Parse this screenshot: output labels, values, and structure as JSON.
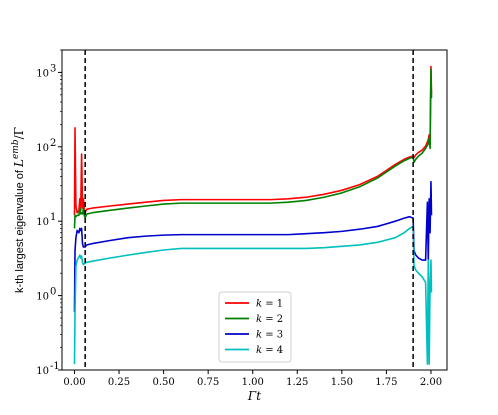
{
  "chart_data": {
    "type": "line",
    "title": "",
    "xlabel": "Γt",
    "ylabel": "k-th largest eigenvalue of L^emb/Γ",
    "ylabel_parts": {
      "prefix": "k-th largest eigenvalue of ",
      "var": "L",
      "sup": "emb",
      "suffix": "/Γ"
    },
    "xlim": [
      -0.07,
      2.09
    ],
    "ylim": [
      0.1,
      2000
    ],
    "yscale": "log",
    "grid": false,
    "legend_position": "lower-center",
    "xticks": [
      0.0,
      0.25,
      0.5,
      0.75,
      1.0,
      1.25,
      1.5,
      1.75,
      2.0
    ],
    "xtick_labels": [
      "0.00",
      "0.25",
      "0.50",
      "0.75",
      "1.00",
      "1.25",
      "1.50",
      "1.75",
      "2.00"
    ],
    "yticks": [
      0.1,
      1,
      10,
      100,
      1000
    ],
    "ytick_labels": [
      "10",
      "10",
      "10",
      "10",
      "10"
    ],
    "ytick_exponents": [
      "-1",
      "0",
      "1",
      "2",
      "3"
    ],
    "vlines": [
      0.06,
      1.9
    ],
    "series": [
      {
        "name": "k = 1",
        "legend_prefix": "k",
        "legend_value": "= 1",
        "color": "#ff0000",
        "x": [
          0.0,
          0.003,
          0.008,
          0.015,
          0.025,
          0.03,
          0.035,
          0.04,
          0.045,
          0.05,
          0.055,
          0.06,
          0.065,
          0.07,
          0.1,
          0.2,
          0.3,
          0.4,
          0.5,
          0.6,
          0.7,
          0.8,
          0.9,
          1.0,
          1.1,
          1.2,
          1.3,
          1.4,
          1.5,
          1.6,
          1.7,
          1.8,
          1.85,
          1.88,
          1.9,
          1.905,
          1.915,
          1.93,
          1.95,
          1.97,
          1.985,
          1.99,
          1.995,
          2.0,
          2.003
        ],
        "values": [
          12,
          180,
          16,
          13,
          14,
          20,
          14,
          80,
          15,
          20,
          14,
          13,
          14,
          14.5,
          15,
          16,
          17,
          18,
          19,
          19.5,
          19.5,
          19.5,
          19.5,
          19.5,
          19.5,
          20,
          21,
          23,
          26,
          31,
          40,
          58,
          68,
          73,
          75,
          72,
          78,
          84,
          90,
          102,
          125,
          145,
          110,
          1200,
          500
        ]
      },
      {
        "name": "k = 2",
        "legend_prefix": "k",
        "legend_value": "= 2",
        "color": "#008000",
        "x": [
          0.0,
          0.003,
          0.008,
          0.015,
          0.025,
          0.03,
          0.035,
          0.04,
          0.045,
          0.05,
          0.055,
          0.06,
          0.065,
          0.07,
          0.1,
          0.2,
          0.3,
          0.4,
          0.5,
          0.6,
          0.7,
          0.8,
          0.9,
          1.0,
          1.1,
          1.2,
          1.3,
          1.4,
          1.5,
          1.6,
          1.7,
          1.8,
          1.85,
          1.88,
          1.9,
          1.905,
          1.915,
          1.93,
          1.95,
          1.97,
          1.985,
          1.99,
          1.995,
          2.0,
          2.003
        ],
        "values": [
          8,
          12,
          11.5,
          12,
          12,
          15,
          12.5,
          13,
          12.5,
          15,
          12,
          11,
          12,
          12.5,
          13,
          14,
          15,
          16,
          17,
          17.5,
          17.5,
          17.5,
          17.5,
          17.5,
          17.5,
          18,
          19,
          21,
          24,
          29,
          38,
          55,
          65,
          70,
          73,
          62,
          68,
          75,
          82,
          95,
          110,
          130,
          95,
          1100,
          450
        ]
      },
      {
        "name": "k = 3",
        "legend_prefix": "k",
        "legend_value": "= 3",
        "color": "#0000cd",
        "x": [
          0.0,
          0.003,
          0.008,
          0.015,
          0.025,
          0.03,
          0.035,
          0.04,
          0.045,
          0.05,
          0.055,
          0.06,
          0.065,
          0.07,
          0.1,
          0.2,
          0.3,
          0.4,
          0.5,
          0.6,
          0.7,
          0.8,
          0.9,
          1.0,
          1.1,
          1.2,
          1.3,
          1.4,
          1.5,
          1.6,
          1.7,
          1.8,
          1.85,
          1.88,
          1.9,
          1.905,
          1.915,
          1.93,
          1.95,
          1.97,
          1.98,
          1.985,
          1.99,
          1.995,
          2.0,
          2.003
        ],
        "values": [
          0.6,
          4,
          6,
          7.5,
          7,
          8,
          7.5,
          8,
          5,
          4.5,
          4.5,
          4.5,
          4.7,
          4.8,
          5,
          5.5,
          6,
          6.3,
          6.5,
          6.6,
          6.6,
          6.6,
          6.6,
          6.6,
          6.6,
          6.6,
          6.8,
          7,
          7.3,
          7.8,
          8.5,
          10,
          11,
          11.5,
          11,
          4,
          3.5,
          3.2,
          3,
          3,
          18,
          3,
          20,
          7,
          34,
          12
        ]
      },
      {
        "name": "k = 4",
        "legend_prefix": "k",
        "legend_value": "= 4",
        "color": "#00bfbf",
        "x": [
          0.0,
          0.003,
          0.008,
          0.015,
          0.025,
          0.03,
          0.035,
          0.04,
          0.045,
          0.05,
          0.055,
          0.06,
          0.065,
          0.07,
          0.1,
          0.2,
          0.3,
          0.4,
          0.5,
          0.6,
          0.7,
          0.8,
          0.9,
          1.0,
          1.1,
          1.2,
          1.3,
          1.4,
          1.5,
          1.6,
          1.7,
          1.8,
          1.85,
          1.88,
          1.9,
          1.905,
          1.915,
          1.93,
          1.95,
          1.97,
          1.98,
          1.985,
          1.99,
          1.995,
          2.0,
          2.003
        ],
        "values": [
          0.12,
          0.6,
          2.5,
          3,
          3.3,
          3.5,
          3.2,
          3.4,
          2.8,
          2.6,
          2.7,
          2.7,
          2.8,
          2.8,
          2.9,
          3.2,
          3.5,
          3.8,
          4.1,
          4.3,
          4.3,
          4.3,
          4.3,
          4.3,
          4.3,
          4.3,
          4.3,
          4.4,
          4.6,
          4.8,
          5.2,
          6,
          7,
          8,
          8.5,
          2.5,
          2.2,
          2.0,
          1.8,
          1.5,
          0.12,
          3,
          0.12,
          1.5,
          3,
          1.1
        ]
      }
    ]
  }
}
